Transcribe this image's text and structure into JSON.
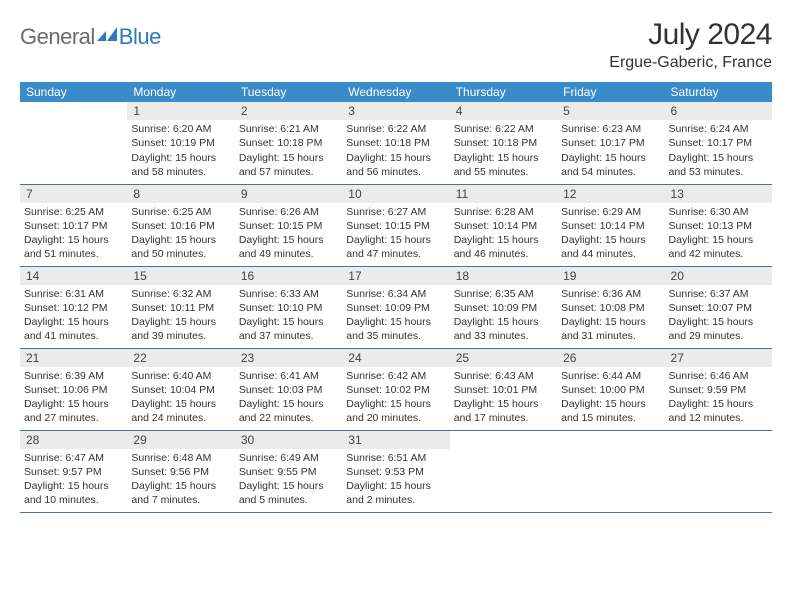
{
  "logo": {
    "word1": "General",
    "word2": "Blue"
  },
  "header": {
    "month": "July 2024",
    "location": "Ergue-Gaberic, France"
  },
  "calendar": {
    "columns": [
      "Sunday",
      "Monday",
      "Tuesday",
      "Wednesday",
      "Thursday",
      "Friday",
      "Saturday"
    ],
    "header_bg": "#3a8bc9",
    "header_fg": "#ffffff",
    "daynum_bg": "#ebebeb",
    "row_border": "#4a6fa0",
    "weeks": [
      [
        {
          "empty": true
        },
        {
          "n": "1",
          "sunrise": "6:20 AM",
          "sunset": "10:19 PM",
          "dl_h": "15",
          "dl_m": "58"
        },
        {
          "n": "2",
          "sunrise": "6:21 AM",
          "sunset": "10:18 PM",
          "dl_h": "15",
          "dl_m": "57"
        },
        {
          "n": "3",
          "sunrise": "6:22 AM",
          "sunset": "10:18 PM",
          "dl_h": "15",
          "dl_m": "56"
        },
        {
          "n": "4",
          "sunrise": "6:22 AM",
          "sunset": "10:18 PM",
          "dl_h": "15",
          "dl_m": "55"
        },
        {
          "n": "5",
          "sunrise": "6:23 AM",
          "sunset": "10:17 PM",
          "dl_h": "15",
          "dl_m": "54"
        },
        {
          "n": "6",
          "sunrise": "6:24 AM",
          "sunset": "10:17 PM",
          "dl_h": "15",
          "dl_m": "53"
        }
      ],
      [
        {
          "n": "7",
          "sunrise": "6:25 AM",
          "sunset": "10:17 PM",
          "dl_h": "15",
          "dl_m": "51"
        },
        {
          "n": "8",
          "sunrise": "6:25 AM",
          "sunset": "10:16 PM",
          "dl_h": "15",
          "dl_m": "50"
        },
        {
          "n": "9",
          "sunrise": "6:26 AM",
          "sunset": "10:15 PM",
          "dl_h": "15",
          "dl_m": "49"
        },
        {
          "n": "10",
          "sunrise": "6:27 AM",
          "sunset": "10:15 PM",
          "dl_h": "15",
          "dl_m": "47"
        },
        {
          "n": "11",
          "sunrise": "6:28 AM",
          "sunset": "10:14 PM",
          "dl_h": "15",
          "dl_m": "46"
        },
        {
          "n": "12",
          "sunrise": "6:29 AM",
          "sunset": "10:14 PM",
          "dl_h": "15",
          "dl_m": "44"
        },
        {
          "n": "13",
          "sunrise": "6:30 AM",
          "sunset": "10:13 PM",
          "dl_h": "15",
          "dl_m": "42"
        }
      ],
      [
        {
          "n": "14",
          "sunrise": "6:31 AM",
          "sunset": "10:12 PM",
          "dl_h": "15",
          "dl_m": "41"
        },
        {
          "n": "15",
          "sunrise": "6:32 AM",
          "sunset": "10:11 PM",
          "dl_h": "15",
          "dl_m": "39"
        },
        {
          "n": "16",
          "sunrise": "6:33 AM",
          "sunset": "10:10 PM",
          "dl_h": "15",
          "dl_m": "37"
        },
        {
          "n": "17",
          "sunrise": "6:34 AM",
          "sunset": "10:09 PM",
          "dl_h": "15",
          "dl_m": "35"
        },
        {
          "n": "18",
          "sunrise": "6:35 AM",
          "sunset": "10:09 PM",
          "dl_h": "15",
          "dl_m": "33"
        },
        {
          "n": "19",
          "sunrise": "6:36 AM",
          "sunset": "10:08 PM",
          "dl_h": "15",
          "dl_m": "31"
        },
        {
          "n": "20",
          "sunrise": "6:37 AM",
          "sunset": "10:07 PM",
          "dl_h": "15",
          "dl_m": "29"
        }
      ],
      [
        {
          "n": "21",
          "sunrise": "6:39 AM",
          "sunset": "10:06 PM",
          "dl_h": "15",
          "dl_m": "27"
        },
        {
          "n": "22",
          "sunrise": "6:40 AM",
          "sunset": "10:04 PM",
          "dl_h": "15",
          "dl_m": "24"
        },
        {
          "n": "23",
          "sunrise": "6:41 AM",
          "sunset": "10:03 PM",
          "dl_h": "15",
          "dl_m": "22"
        },
        {
          "n": "24",
          "sunrise": "6:42 AM",
          "sunset": "10:02 PM",
          "dl_h": "15",
          "dl_m": "20"
        },
        {
          "n": "25",
          "sunrise": "6:43 AM",
          "sunset": "10:01 PM",
          "dl_h": "15",
          "dl_m": "17"
        },
        {
          "n": "26",
          "sunrise": "6:44 AM",
          "sunset": "10:00 PM",
          "dl_h": "15",
          "dl_m": "15"
        },
        {
          "n": "27",
          "sunrise": "6:46 AM",
          "sunset": "9:59 PM",
          "dl_h": "15",
          "dl_m": "12"
        }
      ],
      [
        {
          "n": "28",
          "sunrise": "6:47 AM",
          "sunset": "9:57 PM",
          "dl_h": "15",
          "dl_m": "10"
        },
        {
          "n": "29",
          "sunrise": "6:48 AM",
          "sunset": "9:56 PM",
          "dl_h": "15",
          "dl_m": "7"
        },
        {
          "n": "30",
          "sunrise": "6:49 AM",
          "sunset": "9:55 PM",
          "dl_h": "15",
          "dl_m": "5"
        },
        {
          "n": "31",
          "sunrise": "6:51 AM",
          "sunset": "9:53 PM",
          "dl_h": "15",
          "dl_m": "2"
        },
        {
          "empty": true
        },
        {
          "empty": true
        },
        {
          "empty": true
        }
      ]
    ]
  },
  "labels": {
    "sunrise_prefix": "Sunrise: ",
    "sunset_prefix": "Sunset: ",
    "daylight_prefix": "Daylight: ",
    "hours_word": " hours and ",
    "minutes_word": " minutes."
  }
}
